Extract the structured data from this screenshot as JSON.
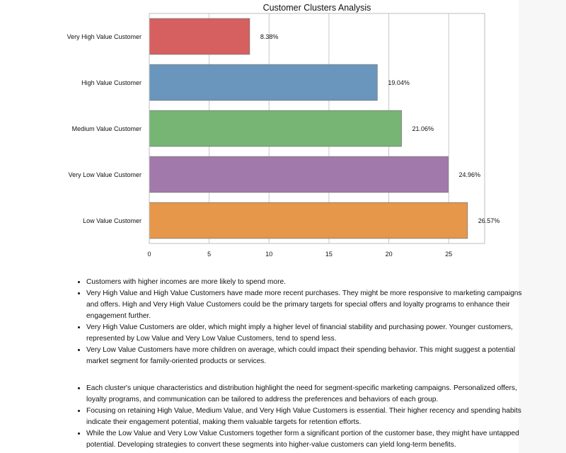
{
  "chart_data": {
    "type": "bar",
    "orientation": "horizontal",
    "title": "Customer Clusters Analysis",
    "categories": [
      "Very High Value Customer",
      "High Value Customer",
      "Medium Value Customer",
      "Very Low Value Customer",
      "Low Value Customer"
    ],
    "values": [
      8.38,
      19.04,
      21.06,
      24.96,
      26.57
    ],
    "data_labels": [
      "8.38%",
      "19.04%",
      "21.06%",
      "24.96%",
      "26.57%"
    ],
    "colors": [
      "#d65f5f",
      "#6a96bd",
      "#76b574",
      "#a179aa",
      "#e6974a"
    ],
    "xlim": [
      0,
      28
    ],
    "xticks": [
      0,
      5,
      10,
      15,
      20,
      25
    ],
    "grid": "vertical",
    "legend": "none"
  },
  "insights": {
    "group1": [
      "Customers with higher incomes are more likely to spend more.",
      "Very High Value and High Value Customers have made more recent purchases. They might be more responsive to marketing campaigns and offers. High and Very High Value Customers could be the primary targets for special offers and loyalty programs to enhance their engagement further.",
      "Very High Value Customers are older, which might imply a higher level of financial stability and purchasing power. Younger customers, represented by Low Value and Very Low Value Customers, tend to spend less.",
      "Very Low Value Customers have more children on average, which could impact their spending behavior. This might suggest a potential market segment for family-oriented products or services."
    ],
    "group2": [
      "Each cluster's unique characteristics and distribution highlight the need for segment-specific marketing campaigns. Personalized offers, loyalty programs, and communication can be tailored to address the preferences and behaviors of each group.",
      "Focusing on retaining High Value, Medium Value, and Very High Value Customers is essential. Their higher recency and spending habits indicate their engagement potential, making them valuable targets for retention efforts.",
      "While the Low Value and Very Low Value Customers together form a significant portion of the customer base, they might have untapped potential. Developing strategies to convert these segments into higher-value customers can yield long-term benefits."
    ]
  }
}
